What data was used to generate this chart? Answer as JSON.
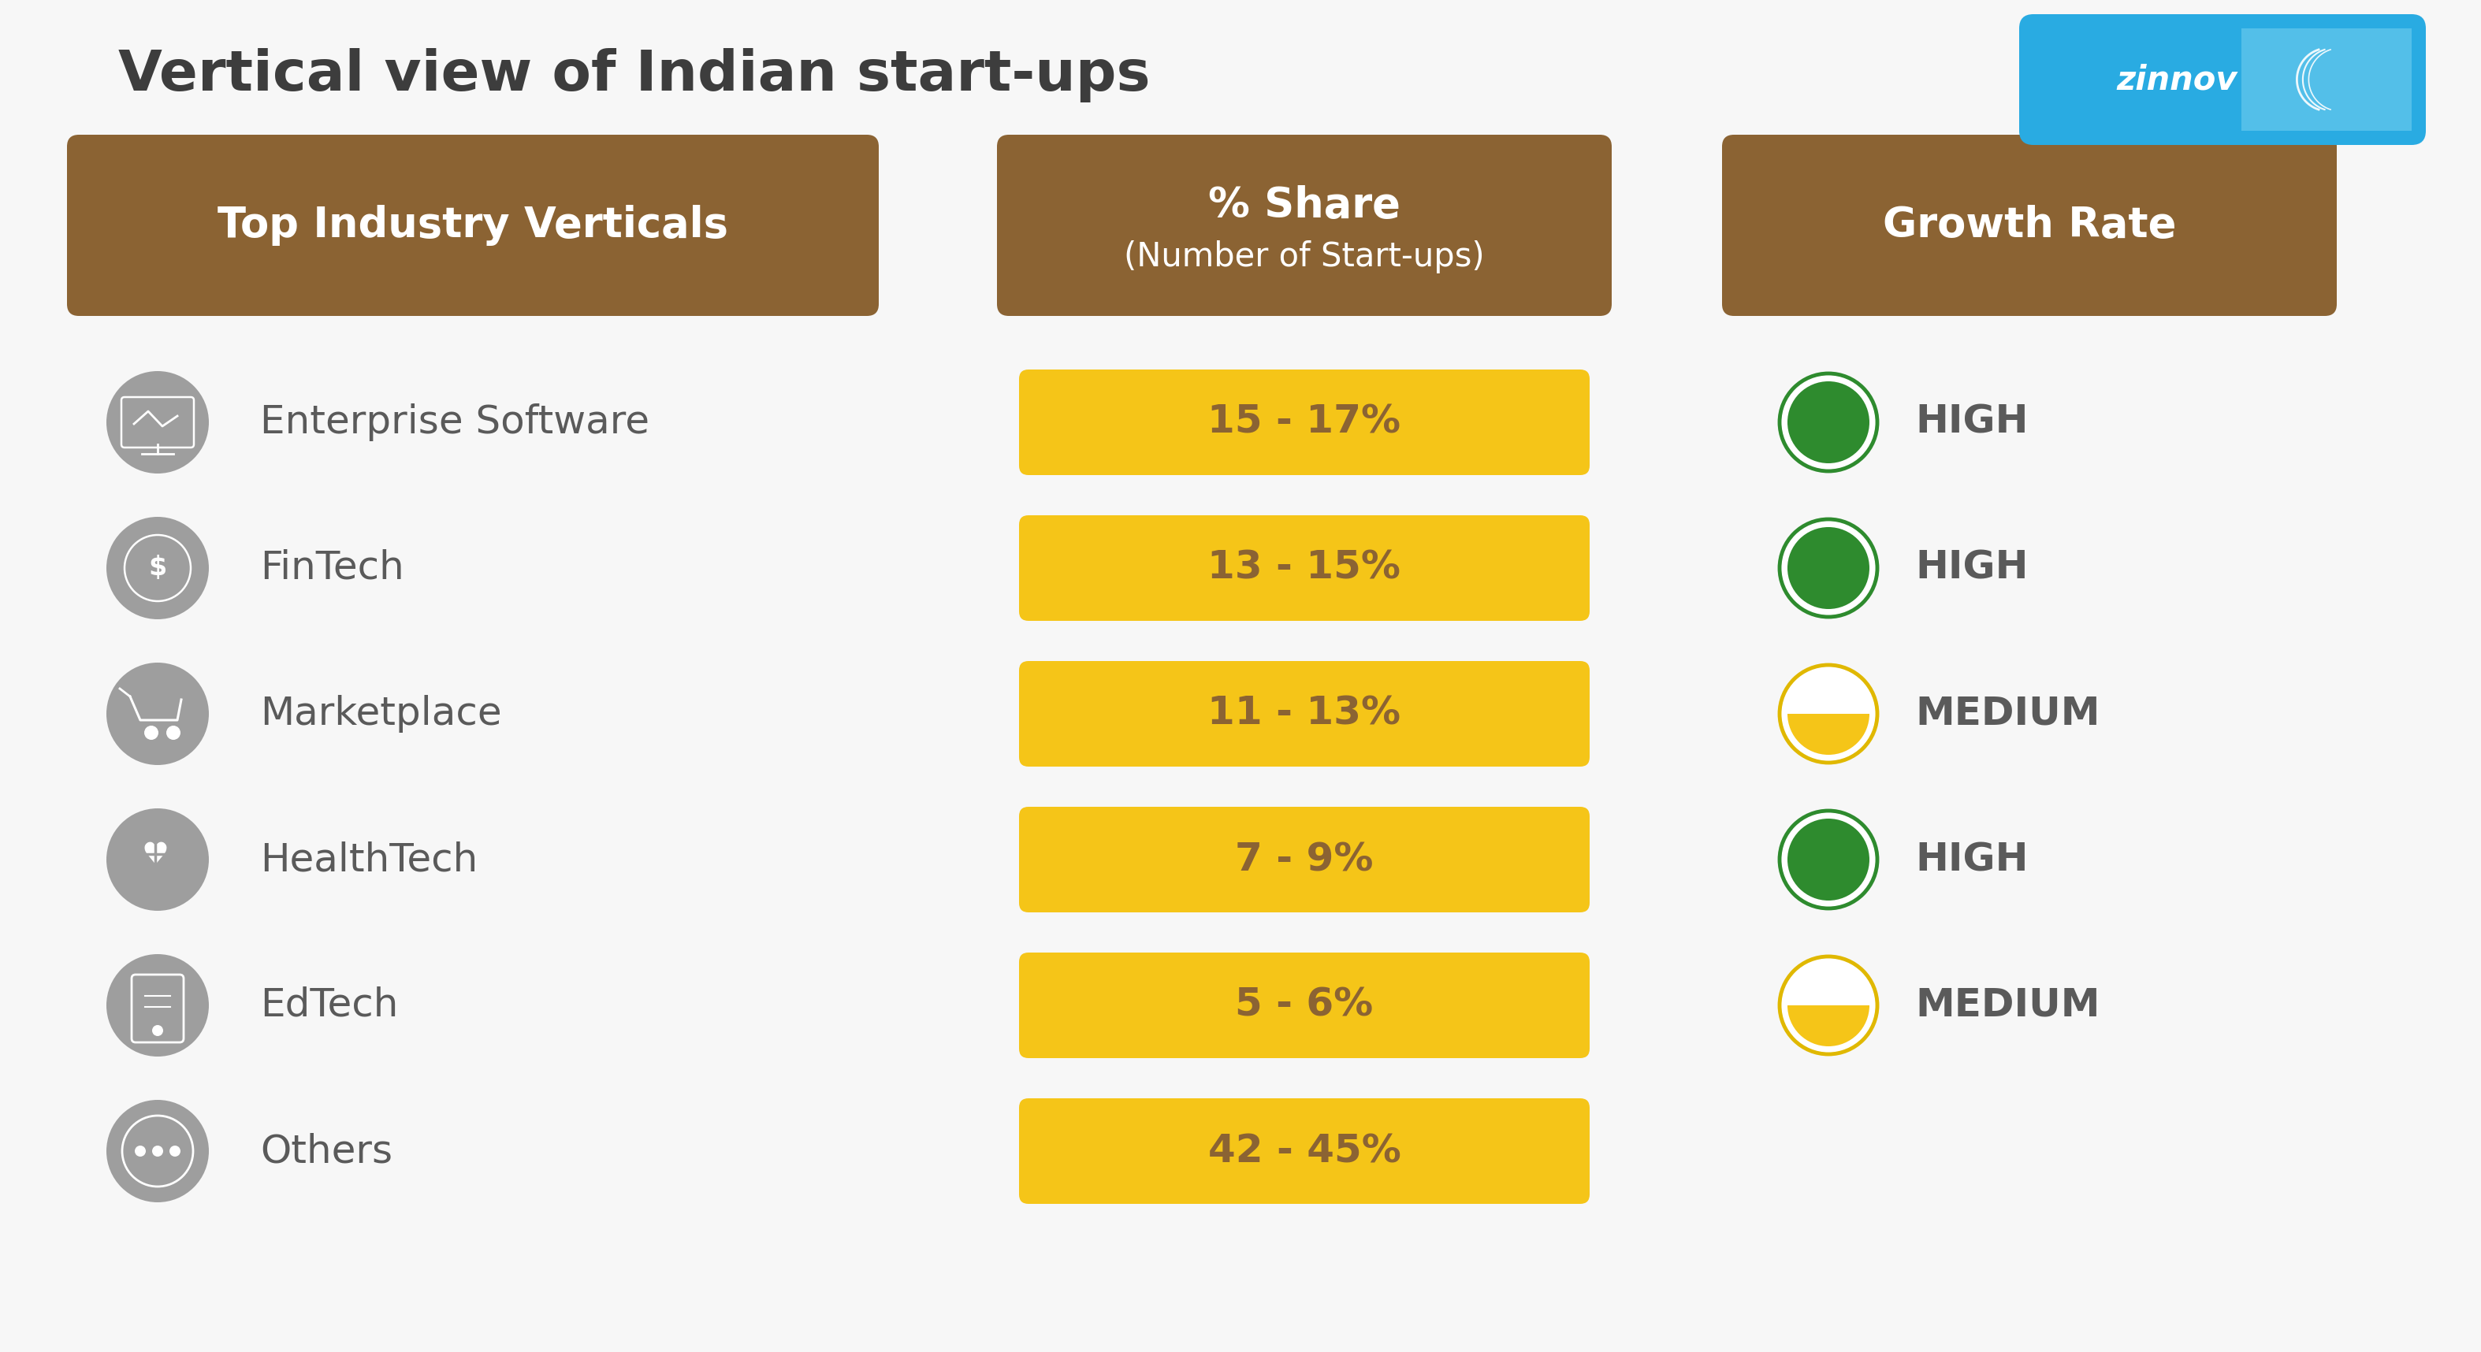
{
  "title": "Vertical view of Indian start-ups",
  "title_fontsize": 52,
  "title_color": "#3d3d3d",
  "bg_color": "#f7f7f7",
  "header_bg_color": "#8B6333",
  "header_text_color": "#ffffff",
  "headers": [
    "Top Industry Verticals",
    "% Share\n(Number of Start-ups)",
    "Growth Rate"
  ],
  "rows": [
    {
      "label": "Enterprise Software",
      "share": "15 - 17%",
      "growth": "HIGH",
      "growth_type": "high"
    },
    {
      "label": "FinTech",
      "share": "13 - 15%",
      "growth": "HIGH",
      "growth_type": "high"
    },
    {
      "label": "Marketplace",
      "share": "11 - 13%",
      "growth": "MEDIUM",
      "growth_type": "medium"
    },
    {
      "label": "HealthTech",
      "share": "7 - 9%",
      "growth": "HIGH",
      "growth_type": "high"
    },
    {
      "label": "EdTech",
      "share": "5 - 6%",
      "growth": "MEDIUM",
      "growth_type": "medium"
    },
    {
      "label": "Others",
      "share": "42 - 45%",
      "growth": "",
      "growth_type": "none"
    }
  ],
  "share_bg_color": "#F5C518",
  "share_text_color": "#8B6333",
  "icon_bg_color": "#9E9E9E",
  "icon_fg_color": "#ffffff",
  "label_color": "#5a5a5a",
  "growth_text_color": "#5a5a5a",
  "high_color": "#2E8B2E",
  "medium_fill_color": "#F5C518",
  "medium_ring_color": "#E0B800",
  "logo_bg_color": "#2196F3",
  "logo_text": "zinnov",
  "row_fontsize": 36,
  "share_fontsize": 36,
  "growth_fontsize": 36,
  "header_fontsize": 38,
  "header_sub_fontsize": 30
}
